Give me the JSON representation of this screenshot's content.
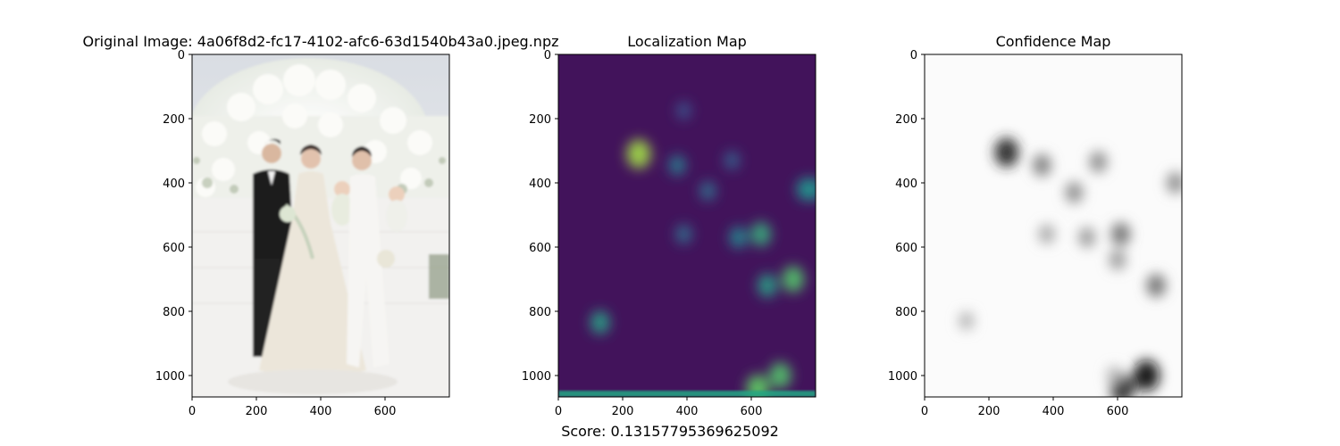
{
  "chart_data": [
    {
      "type": "image",
      "panel": "original",
      "title": "Original Image: 4a06f8d2-fc17-4102-afc6-63d1540b43a0.jpeg.npz",
      "xlim": [
        0,
        800
      ],
      "ylim": [
        1067,
        0
      ],
      "xticks": [
        0,
        200,
        400,
        600
      ],
      "yticks": [
        0,
        200,
        400,
        600,
        800,
        1000
      ],
      "content": "wedding photo: couple with two babies and a woman in white in front of a white floral backdrop"
    },
    {
      "type": "heatmap",
      "panel": "localization",
      "title": "Localization Map",
      "colormap": "viridis",
      "xlim": [
        0,
        800
      ],
      "ylim": [
        1067,
        0
      ],
      "xticks": [
        0,
        200,
        400,
        600
      ],
      "yticks": [
        0,
        200,
        400,
        600,
        800,
        1000
      ],
      "hotspots": [
        {
          "x": 250,
          "y": 310,
          "intensity": 0.85
        },
        {
          "x": 370,
          "y": 345,
          "intensity": 0.4
        },
        {
          "x": 540,
          "y": 330,
          "intensity": 0.3
        },
        {
          "x": 465,
          "y": 425,
          "intensity": 0.35
        },
        {
          "x": 390,
          "y": 560,
          "intensity": 0.35
        },
        {
          "x": 560,
          "y": 570,
          "intensity": 0.45
        },
        {
          "x": 630,
          "y": 560,
          "intensity": 0.6
        },
        {
          "x": 730,
          "y": 700,
          "intensity": 0.7
        },
        {
          "x": 650,
          "y": 720,
          "intensity": 0.55
        },
        {
          "x": 770,
          "y": 420,
          "intensity": 0.5
        },
        {
          "x": 790,
          "y": 420,
          "intensity": 0.5
        },
        {
          "x": 130,
          "y": 835,
          "intensity": 0.55
        },
        {
          "x": 690,
          "y": 1000,
          "intensity": 0.7
        },
        {
          "x": 620,
          "y": 1040,
          "intensity": 0.75
        },
        {
          "x": 390,
          "y": 175,
          "intensity": 0.25
        }
      ]
    },
    {
      "type": "heatmap",
      "panel": "confidence",
      "title": "Confidence Map",
      "colormap": "Greys",
      "xlim": [
        0,
        800
      ],
      "ylim": [
        1067,
        0
      ],
      "xticks": [
        0,
        200,
        400,
        600
      ],
      "yticks": [
        0,
        200,
        400,
        600,
        800,
        1000
      ],
      "hotspots": [
        {
          "x": 255,
          "y": 305,
          "intensity": 0.85
        },
        {
          "x": 365,
          "y": 345,
          "intensity": 0.5
        },
        {
          "x": 540,
          "y": 335,
          "intensity": 0.45
        },
        {
          "x": 465,
          "y": 430,
          "intensity": 0.45
        },
        {
          "x": 380,
          "y": 560,
          "intensity": 0.35
        },
        {
          "x": 505,
          "y": 570,
          "intensity": 0.4
        },
        {
          "x": 610,
          "y": 560,
          "intensity": 0.55
        },
        {
          "x": 720,
          "y": 720,
          "intensity": 0.55
        },
        {
          "x": 600,
          "y": 640,
          "intensity": 0.4
        },
        {
          "x": 780,
          "y": 400,
          "intensity": 0.45
        },
        {
          "x": 690,
          "y": 1000,
          "intensity": 0.95
        },
        {
          "x": 615,
          "y": 1040,
          "intensity": 0.85
        },
        {
          "x": 590,
          "y": 1000,
          "intensity": 0.3
        },
        {
          "x": 130,
          "y": 830,
          "intensity": 0.3
        }
      ]
    }
  ],
  "footer": {
    "score_text": "Score: 0.13157795369625092"
  }
}
